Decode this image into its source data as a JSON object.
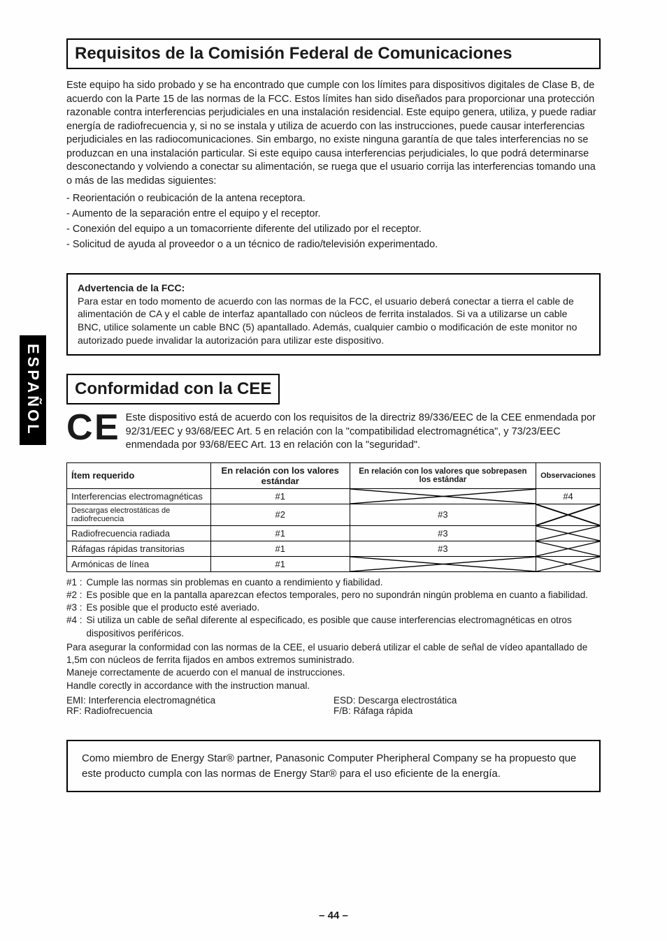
{
  "side_tab": "ESPAÑOL",
  "section1": {
    "title": "Requisitos de la Comisión Federal de Comunicaciones",
    "body": "Este equipo ha sido probado y se ha encontrado que cumple con los límites para dispositivos digitales de Clase B, de acuerdo con la Parte 15 de las normas de la FCC. Estos límites han sido diseñados para proporcionar una protección razonable contra interferencias perjudiciales en una instalación residencial. Este equipo genera, utiliza, y puede radiar energía de radiofrecuencia y, si no se instala y utiliza de acuerdo con las instrucciones, puede causar interferencias perjudiciales en las radiocomunicaciones. Sin embargo, no existe ninguna garantía de que tales interferencias no se produzcan en una instalación particular. Si este equipo causa interferencias perjudiciales, lo que podrá determinarse desconectando y volviendo a conectar su alimentación, se ruega que el usuario corrija las interferencias tomando una o más de las medidas siguientes:",
    "bullets": [
      "- Reorientación o reubicación de la antena receptora.",
      "- Aumento de la separación entre el equipo y el receptor.",
      "- Conexión del equipo a un tomacorriente diferente del utilizado por el receptor.",
      "- Solicitud de ayuda al proveedor o a un técnico de radio/televisión experimentado."
    ],
    "warning_title": "Advertencia de la FCC:",
    "warning_body": "Para estar en todo momento de acuerdo con las normas de la FCC, el usuario deberá conectar a tierra el cable de alimentación de CA y el cable de interfaz apantallado con núcleos de ferrita instalados. Si va a utilizarse un cable BNC, utilice solamente un cable BNC (5) apantallado. Además, cualquier cambio o modificación de este monitor no autorizado puede invalidar la autorización para utilizar este dispositivo."
  },
  "section2": {
    "title": "Conformidad con la CEE",
    "ce_text": "Este dispositivo está de acuerdo con los requisitos de la directriz 89/336/EEC de la CEE enmendada por 92/31/EEC y 93/68/EEC Art. 5 en relación con la \"compatibilidad electromagnética\", y 73/23/EEC enmendada por 93/68/EEC Art. 13 en relación con la \"seguridad\".",
    "table": {
      "headers": [
        "Ítem requerido",
        "En relación con los valores estándar",
        "En relación con los valores que sobrepasen los estándar",
        "Observaciones"
      ],
      "rows": [
        {
          "c0": "Interferencias electromagnéticas",
          "c1": "#1",
          "c2": "X",
          "c3": "#4"
        },
        {
          "c0": "Descargas electrostáticas de radiofrecuencia",
          "c1": "#2",
          "c2": "#3",
          "c3": "X"
        },
        {
          "c0": "Radiofrecuencia radiada",
          "c1": "#1",
          "c2": "#3",
          "c3": "X"
        },
        {
          "c0": "Ráfagas rápidas transitorias",
          "c1": "#1",
          "c2": "#3",
          "c3": "X"
        },
        {
          "c0": "Armónicas de línea",
          "c1": "#1",
          "c2": "X",
          "c3": "X"
        }
      ]
    },
    "footnotes": [
      {
        "lbl": "#1 :",
        "txt": "Cumple las normas sin problemas en cuanto a rendimiento y fiabilidad."
      },
      {
        "lbl": "#2 :",
        "txt": "Es posible que en la pantalla aparezcan efectos temporales, pero no supondrán ningún problema en cuanto a fiabilidad."
      },
      {
        "lbl": "#3 :",
        "txt": "Es posible que el producto esté averiado."
      },
      {
        "lbl": "#4 :",
        "txt": "Si utiliza un cable de señal diferente al especificado, es posible que cause interferencias electromagnéticas en otros dispositivos periféricos."
      }
    ],
    "post_notes": [
      "Para asegurar la conformidad con las normas de la CEE, el usuario deberá utilizar el cable de señal de vídeo apantallado de 1,5m con núcleos de ferrita fijados en ambos extremos suministrado.",
      "Maneje correctamente de acuerdo con el manual de instrucciones.",
      "Handle corectly in accordance with the instruction manual."
    ],
    "abbr": {
      "a1": "EMI: Interferencia electromagnética",
      "a2": "ESD: Descarga electrostática",
      "a3": "RF: Radiofrecuencia",
      "a4": "F/B: Ráfaga rápida"
    }
  },
  "energy_box": "Como miembro de Energy Star® partner, Panasonic Computer Pheripheral Company se ha propuesto que este producto cumpla con las normas de Energy Star® para el uso eficiente de la energía.",
  "page_number": "– 44 –"
}
